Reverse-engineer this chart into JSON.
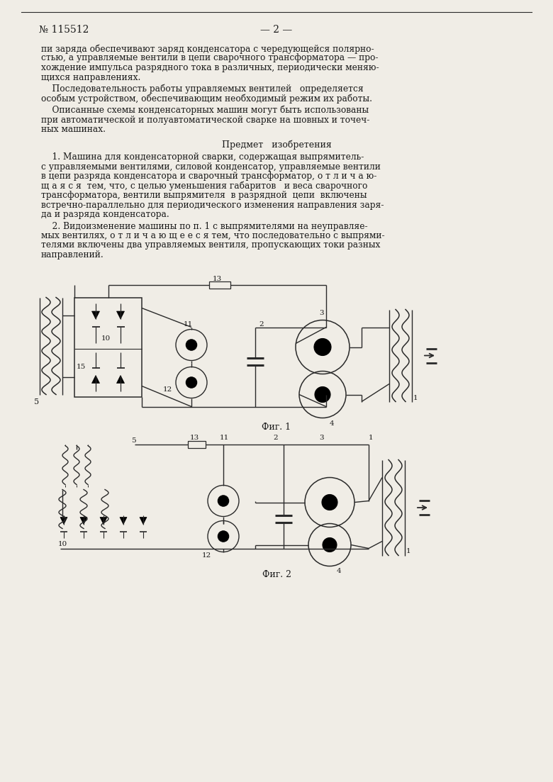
{
  "bg_color": "#f0ede6",
  "text_color": "#1a1a1a",
  "line_color": "#2a2a2a",
  "patent_number": "№ 115512",
  "page_number": "— 2 —",
  "fig1_label": "Фиг. 1",
  "fig2_label": "Фиг. 2",
  "lines_p1": [
    "пи заряда обеспечивают заряд конденсатора с чередующейся полярно-",
    "стью, а управляемые вентили в цепи сварочного трансформатора — про-",
    "хождение импульса разрядного тока в различных, периодически меняю-",
    "щихся направлениях."
  ],
  "lines_p2": [
    "    Последовательность работы управляемых вентилей   определяется",
    "особым устройством, обеспечивающим необходимый режим их работы."
  ],
  "lines_p3": [
    "    Описанные схемы конденсаторных машин могут быть использованы",
    "при автоматической и полуавтоматической сварке на шовных и точеч-",
    "ных машинах."
  ],
  "section_title": "Предмет   изобретения",
  "lines_c1": [
    "    1. Машина для конденсаторной сварки, содержащая выпрямитель-",
    "с управляемыми вентилями, силовой конденсатор, управляемые вентили",
    "в цепи разряда конденсатора и сварочный трансформатор, о т л и ч а ю-",
    "щ а я с я  тем, что, с целью уменьшения габаритов   и веса сварочного",
    "трансформатора, вентили выпрямителя  в разрядной  цепи  включены",
    "встречно-параллельно для периодического изменения направления заря-",
    "да и разряда конденсатора."
  ],
  "lines_c2": [
    "    2. Видоизменение машины по п. 1 с выпрямителями на неуправляе-",
    "мых вентилях, о т л и ч а ю щ е е с я тем, что последовательно с выпрями-",
    "телями включены два управляемых вентиля, пропускающих токи разных",
    "направлений."
  ]
}
